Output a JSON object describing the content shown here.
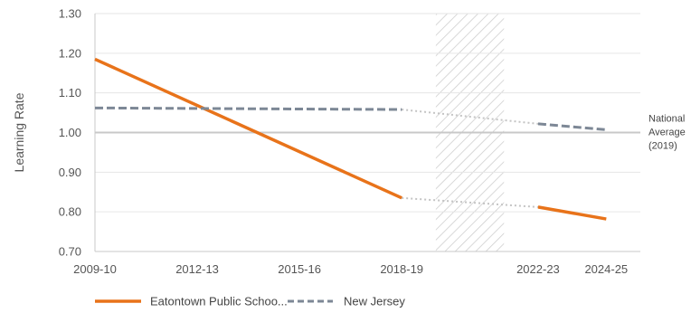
{
  "chart_data": {
    "type": "line",
    "title": "",
    "xlabel": "",
    "ylabel": "Learning Rate",
    "ylim": [
      0.7,
      1.3
    ],
    "y_ticks": [
      "0.70",
      "0.80",
      "0.90",
      "1.00",
      "1.10",
      "1.20",
      "1.30"
    ],
    "x_range": [
      2009,
      2025
    ],
    "x_tick_labels": [
      {
        "label": "2009-10",
        "x": 2009
      },
      {
        "label": "2012-13",
        "x": 2012
      },
      {
        "label": "2015-16",
        "x": 2015
      },
      {
        "label": "2018-19",
        "x": 2018
      },
      {
        "label": "2022-23",
        "x": 2022
      },
      {
        "label": "2024-25",
        "x": 2024
      }
    ],
    "covid_gap": [
      2019,
      2021
    ],
    "reference_line": {
      "y": 1.0,
      "label_lines": [
        "National",
        "Average",
        "(2019)"
      ]
    },
    "series": [
      {
        "name": "Eatontown Public Schoo...",
        "color": "#E8731A",
        "style": "solid",
        "pre": [
          [
            2009,
            1.185
          ],
          [
            2018,
            0.835
          ]
        ],
        "post": [
          [
            2022,
            0.812
          ],
          [
            2024,
            0.782
          ]
        ]
      },
      {
        "name": "New Jersey",
        "color": "#7D8896",
        "style": "dashed",
        "pre": [
          [
            2009,
            1.062
          ],
          [
            2018,
            1.058
          ]
        ],
        "post": [
          [
            2022,
            1.022
          ],
          [
            2024,
            1.007
          ]
        ]
      }
    ],
    "legend_position": "bottom-left",
    "grid": "horizontal"
  }
}
